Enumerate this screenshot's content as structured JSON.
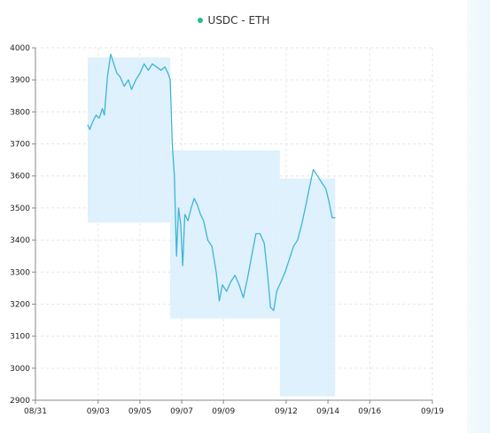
{
  "chart_data": {
    "type": "line",
    "title": "",
    "xlabel": "",
    "ylabel": "",
    "ylim": [
      2900,
      4000
    ],
    "xlim": [
      "08/31",
      "09/19"
    ],
    "x_ticks": [
      "08/31",
      "09/03",
      "09/05",
      "09/07",
      "09/09",
      "09/12",
      "09/14",
      "09/16",
      "09/19"
    ],
    "y_ticks": [
      2900,
      3000,
      3100,
      3200,
      3300,
      3400,
      3500,
      3600,
      3700,
      3800,
      3900,
      4000
    ],
    "grid": true,
    "legend_position": "top-center",
    "series": [
      {
        "name": "USDC - ETH",
        "color": "#3fb4d6",
        "points": [
          [
            2.5,
            3760
          ],
          [
            2.6,
            3745
          ],
          [
            2.75,
            3770
          ],
          [
            2.9,
            3790
          ],
          [
            3.05,
            3780
          ],
          [
            3.2,
            3810
          ],
          [
            3.3,
            3790
          ],
          [
            3.45,
            3910
          ],
          [
            3.6,
            3980
          ],
          [
            3.75,
            3950
          ],
          [
            3.9,
            3920
          ],
          [
            4.05,
            3910
          ],
          [
            4.25,
            3880
          ],
          [
            4.45,
            3900
          ],
          [
            4.6,
            3870
          ],
          [
            4.8,
            3900
          ],
          [
            5.0,
            3920
          ],
          [
            5.2,
            3950
          ],
          [
            5.4,
            3930
          ],
          [
            5.6,
            3950
          ],
          [
            5.8,
            3940
          ],
          [
            6.0,
            3930
          ],
          [
            6.2,
            3940
          ],
          [
            6.35,
            3920
          ],
          [
            6.45,
            3900
          ],
          [
            6.55,
            3700
          ],
          [
            6.65,
            3600
          ],
          [
            6.75,
            3350
          ],
          [
            6.85,
            3500
          ],
          [
            6.95,
            3450
          ],
          [
            7.05,
            3320
          ],
          [
            7.15,
            3480
          ],
          [
            7.3,
            3460
          ],
          [
            7.45,
            3500
          ],
          [
            7.6,
            3530
          ],
          [
            7.75,
            3510
          ],
          [
            7.9,
            3480
          ],
          [
            8.05,
            3460
          ],
          [
            8.25,
            3400
          ],
          [
            8.45,
            3380
          ],
          [
            8.65,
            3300
          ],
          [
            8.8,
            3210
          ],
          [
            8.95,
            3260
          ],
          [
            9.15,
            3240
          ],
          [
            9.35,
            3270
          ],
          [
            9.55,
            3290
          ],
          [
            9.75,
            3260
          ],
          [
            9.95,
            3220
          ],
          [
            10.15,
            3280
          ],
          [
            10.35,
            3350
          ],
          [
            10.55,
            3420
          ],
          [
            10.75,
            3420
          ],
          [
            10.95,
            3390
          ],
          [
            11.1,
            3300
          ],
          [
            11.25,
            3190
          ],
          [
            11.4,
            3180
          ],
          [
            11.55,
            3240
          ],
          [
            11.75,
            3270
          ],
          [
            11.95,
            3300
          ],
          [
            12.15,
            3340
          ],
          [
            12.35,
            3380
          ],
          [
            12.55,
            3400
          ],
          [
            12.75,
            3450
          ],
          [
            12.95,
            3510
          ],
          [
            13.1,
            3560
          ],
          [
            13.3,
            3620
          ],
          [
            13.5,
            3600
          ],
          [
            13.7,
            3580
          ],
          [
            13.9,
            3560
          ],
          [
            14.05,
            3520
          ],
          [
            14.2,
            3470
          ],
          [
            14.35,
            3470
          ]
        ]
      }
    ],
    "highlight_ranges": [
      {
        "x0": 2.5,
        "x1": 6.45,
        "y0": 3455,
        "y1": 3970
      },
      {
        "x0": 6.45,
        "x1": 11.7,
        "y0": 3155,
        "y1": 3680
      },
      {
        "x0": 11.7,
        "x1": 14.35,
        "y0": 2912,
        "y1": 3592
      }
    ],
    "highlight_color": "#d8effb"
  }
}
